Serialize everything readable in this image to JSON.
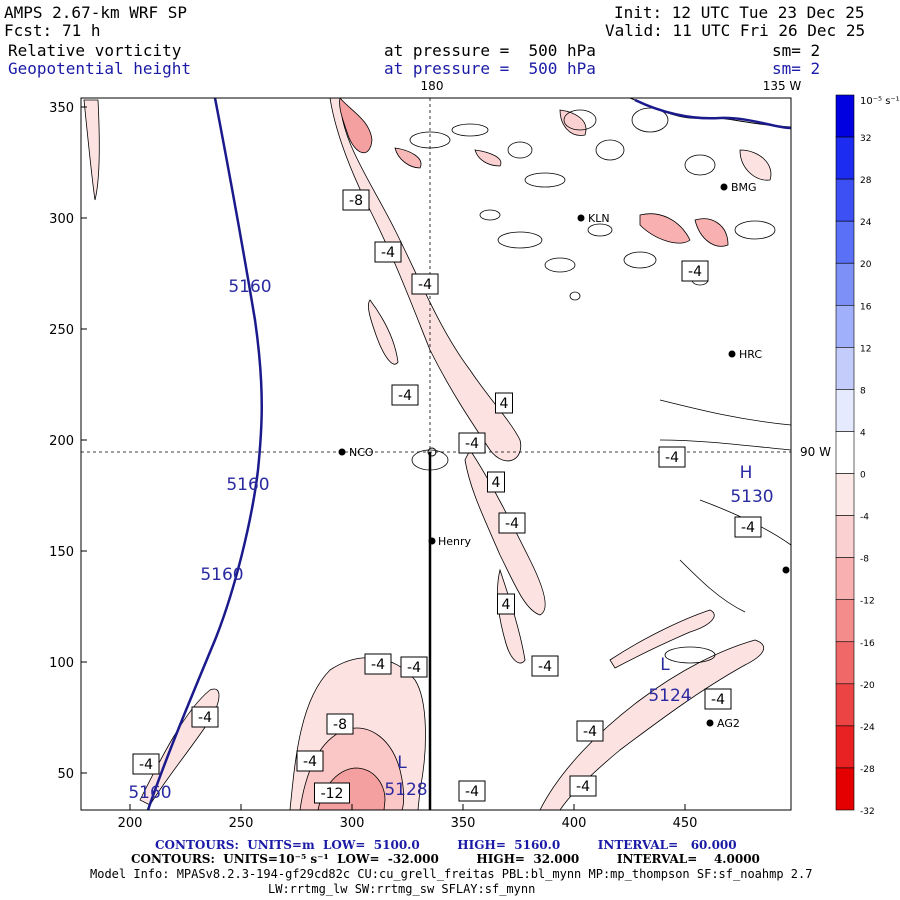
{
  "header": {
    "model": "AMPS 2.67-km WRF SP",
    "forecast_label": "Fcst:",
    "forecast_hours": "71 h",
    "init": "Init: 12 UTC Tue 23 Dec 25",
    "valid": "Valid: 11 UTC Fri 26 Dec 25",
    "field1": "Relative vorticity",
    "field1_level": "at pressure =  500 hPa",
    "field1_sm": "sm= 2",
    "field2": "Geopotential height",
    "field2_level": "at pressure =  500 hPa",
    "field2_sm": "sm= 2"
  },
  "map": {
    "x_ticks": [
      "200",
      "250",
      "300",
      "350",
      "400",
      "450"
    ],
    "y_ticks": [
      "50",
      "100",
      "150",
      "200",
      "250",
      "300",
      "350"
    ],
    "meridian_180": "180",
    "meridian_135w": "135 W",
    "meridian_90w": "90 W",
    "stations": [
      {
        "name": "NCO"
      },
      {
        "name": "Henry"
      },
      {
        "name": "HRC"
      },
      {
        "name": "KLN"
      },
      {
        "name": "BMG"
      },
      {
        "name": "AG2"
      }
    ],
    "height_labels": [
      "5160",
      "5160",
      "5160",
      "5160",
      "5130",
      "5124",
      "5128"
    ],
    "high_marker": "H",
    "low_marker_1": "L",
    "low_marker_2": "L",
    "vorticity_labels": [
      "-8",
      "-4",
      "-4",
      "-4",
      "4",
      "-4",
      "-4",
      "4",
      "-4",
      "-4",
      "4",
      "-4",
      "-4",
      "-4",
      "-4",
      "-4",
      "-8",
      "-4",
      "-12",
      "-4",
      "-4",
      "-4",
      "-4",
      "-4"
    ]
  },
  "colorbar": {
    "unit": "10⁻⁵ s⁻¹",
    "labels": [
      "32",
      "28",
      "24",
      "20",
      "16",
      "12",
      "8",
      "4",
      "0",
      "-4",
      "-8",
      "-12",
      "-16",
      "-20",
      "-24",
      "-28",
      "-32"
    ],
    "colors": [
      "#0000e0",
      "#1c2cf0",
      "#3c50f4",
      "#5a70f6",
      "#7c90f8",
      "#a0b0fa",
      "#c4ccfc",
      "#e6eafe",
      "#ffffff",
      "#fde8e8",
      "#fbd0d0",
      "#f8b0b0",
      "#f58c8c",
      "#f06868",
      "#ec4444",
      "#e82222",
      "#e40000"
    ]
  },
  "footer": {
    "contours1": "CONTOURS:  UNITS=m  LOW=  5100.0         HIGH=  5160.0         INTERVAL=   60.000",
    "contours2": "CONTOURS:  UNITS=10⁻⁵ s⁻¹  LOW=  -32.000         HIGH=  32.000         INTERVAL=    4.0000",
    "model_info": "Model Info: MPASv8.2.3-194-gf29cd82c CU:cu_grell_freitas PBL:bl_mynn MP:mp_thompson SF:sf_noahmp 2.7",
    "model_info2": "LW:rrtmg_lw SW:rrtmg_sw SFLAY:sf_mynn"
  }
}
